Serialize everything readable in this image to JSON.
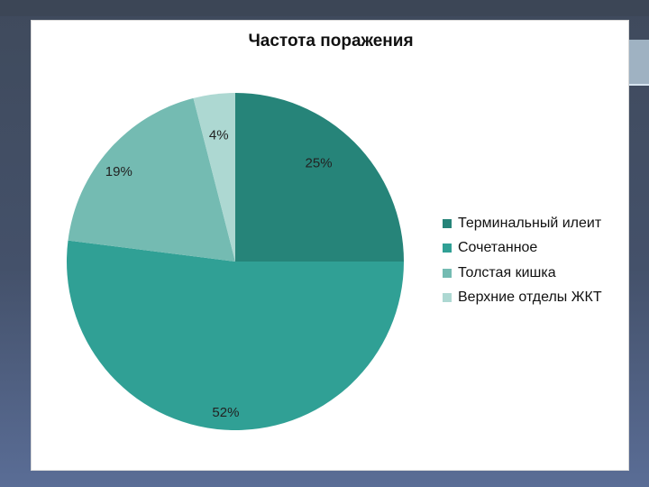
{
  "chart_data": {
    "type": "pie",
    "title": "Частота поражения",
    "categories": [
      "Терминальный илеит",
      "Сочетанное",
      "Толстая кишка",
      "Верхние отделы ЖКТ"
    ],
    "values": [
      25,
      52,
      19,
      4
    ],
    "labels": [
      "25%",
      "52%",
      "19%",
      "4%"
    ],
    "colors": [
      "#268479",
      "#30a095",
      "#74bbb2",
      "#add8d2"
    ],
    "start_angle_deg": 0,
    "direction": "clockwise",
    "legend_position": "right"
  }
}
